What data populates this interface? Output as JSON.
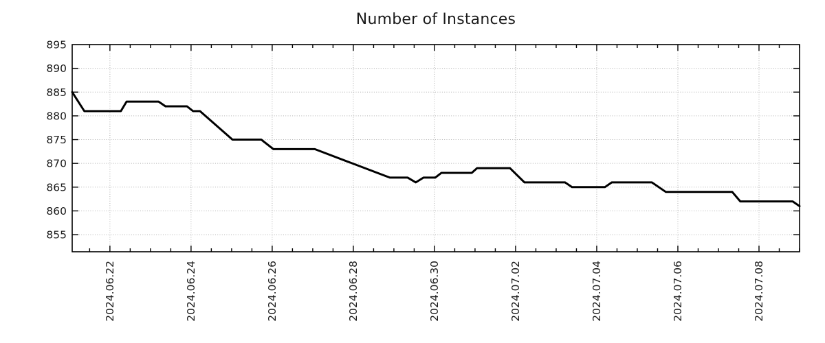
{
  "chart_data": {
    "type": "line",
    "title": "Number of Instances",
    "series_name": "instances",
    "line_color": "#000000",
    "line_width": 3,
    "grid": "dotted",
    "grid_color": "#b0b0b0",
    "text_color": "#1a1a1a",
    "background": "#ffffff",
    "legend": "none",
    "x_axis": {
      "tick_labels": [
        "2024.06.22",
        "2024.06.24",
        "2024.06.26",
        "2024.06.28",
        "2024.06.30",
        "2024.07.02",
        "2024.07.04",
        "2024.07.06",
        "2024.07.08"
      ],
      "tick_day_offsets": [
        0,
        2,
        4,
        6,
        8,
        10,
        12,
        14,
        16
      ],
      "minor_tick_interval_days": 0.5,
      "x_unit": "days since 2024-06-22 00:00",
      "range_days": [
        -0.93,
        17.0
      ]
    },
    "y_axis": {
      "tick_labels": [
        "855",
        "860",
        "865",
        "870",
        "875",
        "880",
        "885",
        "890",
        "895"
      ],
      "tick_values": [
        855,
        860,
        865,
        870,
        875,
        880,
        885,
        890,
        895
      ],
      "range": [
        851.4,
        895
      ]
    },
    "points": [
      {
        "t": "2024-06-21 01:40",
        "d": -0.93,
        "v": 885
      },
      {
        "t": "2024-06-21 08:50",
        "d": -0.63,
        "v": 881
      },
      {
        "t": "2024-06-22 06:30",
        "d": 0.27,
        "v": 881
      },
      {
        "t": "2024-06-22 09:50",
        "d": 0.41,
        "v": 883
      },
      {
        "t": "2024-06-23 04:50",
        "d": 1.2,
        "v": 883
      },
      {
        "t": "2024-06-23 09:00",
        "d": 1.37,
        "v": 882
      },
      {
        "t": "2024-06-23 21:30",
        "d": 1.9,
        "v": 882
      },
      {
        "t": "2024-06-24 01:10",
        "d": 2.05,
        "v": 881
      },
      {
        "t": "2024-06-24 05:15",
        "d": 2.22,
        "v": 881
      },
      {
        "t": "2024-06-25 00:25",
        "d": 3.02,
        "v": 875
      },
      {
        "t": "2024-06-25 17:30",
        "d": 3.73,
        "v": 875
      },
      {
        "t": "2024-06-26 00:50",
        "d": 4.03,
        "v": 873
      },
      {
        "t": "2024-06-27 01:15",
        "d": 5.05,
        "v": 873
      },
      {
        "t": "2024-06-28 21:35",
        "d": 6.9,
        "v": 867
      },
      {
        "t": "2024-06-29 08:10",
        "d": 7.34,
        "v": 867
      },
      {
        "t": "2024-06-29 13:00",
        "d": 7.54,
        "v": 866
      },
      {
        "t": "2024-06-29 17:30",
        "d": 7.73,
        "v": 867
      },
      {
        "t": "2024-06-30 00:25",
        "d": 8.02,
        "v": 867
      },
      {
        "t": "2024-06-30 04:05",
        "d": 8.17,
        "v": 868
      },
      {
        "t": "2024-06-30 22:00",
        "d": 8.92,
        "v": 868
      },
      {
        "t": "2024-07-01 01:15",
        "d": 9.05,
        "v": 869
      },
      {
        "t": "2024-07-01 20:40",
        "d": 9.86,
        "v": 869
      },
      {
        "t": "2024-07-02 05:15",
        "d": 10.22,
        "v": 866
      },
      {
        "t": "2024-07-03 05:15",
        "d": 11.22,
        "v": 866
      },
      {
        "t": "2024-07-03 09:20",
        "d": 11.39,
        "v": 865
      },
      {
        "t": "2024-07-04 04:55",
        "d": 12.2,
        "v": 865
      },
      {
        "t": "2024-07-04 08:55",
        "d": 12.37,
        "v": 866
      },
      {
        "t": "2024-07-05 08:30",
        "d": 13.36,
        "v": 866
      },
      {
        "t": "2024-07-05 16:45",
        "d": 13.7,
        "v": 864
      },
      {
        "t": "2024-07-07 08:10",
        "d": 15.34,
        "v": 864
      },
      {
        "t": "2024-07-07 13:00",
        "d": 15.54,
        "v": 862
      },
      {
        "t": "2024-07-08 19:55",
        "d": 16.83,
        "v": 862
      },
      {
        "t": "2024-07-09 00:00",
        "d": 17.0,
        "v": 861
      }
    ]
  }
}
